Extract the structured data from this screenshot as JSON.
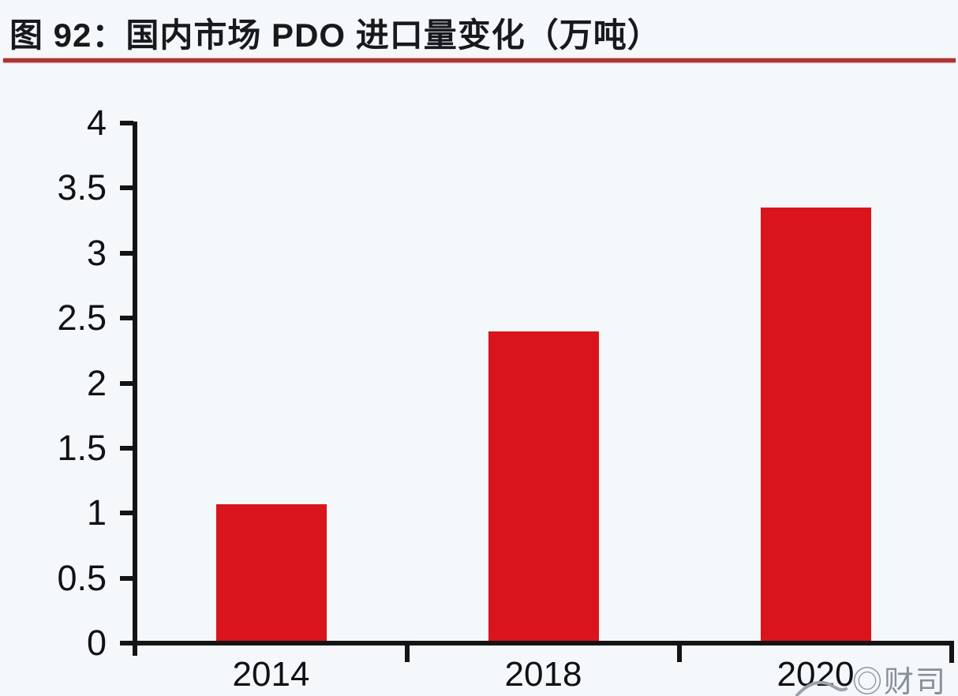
{
  "header": {
    "title": "图 92：国内市场 PDO 进口量变化（万吨）",
    "underline_color": "#A93431"
  },
  "colors": {
    "bar": "#DA141C",
    "axis": "#141414",
    "background": "#F5F8FA",
    "title_text": "#17191D",
    "watermark": "#878F9A"
  },
  "watermark": {
    "text": "◎财司",
    "note": "partially clipped at bottom edge"
  },
  "chart_data": {
    "type": "bar",
    "title": "图 92：国内市场 PDO 进口量变化（万吨）",
    "categories": [
      "2014",
      "2018",
      "2020"
    ],
    "values": [
      1.07,
      2.4,
      3.35
    ],
    "xlabel": "",
    "ylabel": "",
    "ylim": [
      0,
      4
    ],
    "yticks": [
      0,
      0.5,
      1,
      1.5,
      2,
      2.5,
      3,
      3.5,
      4
    ],
    "grid": false,
    "legend": false,
    "bar_color": "#DA141C"
  }
}
